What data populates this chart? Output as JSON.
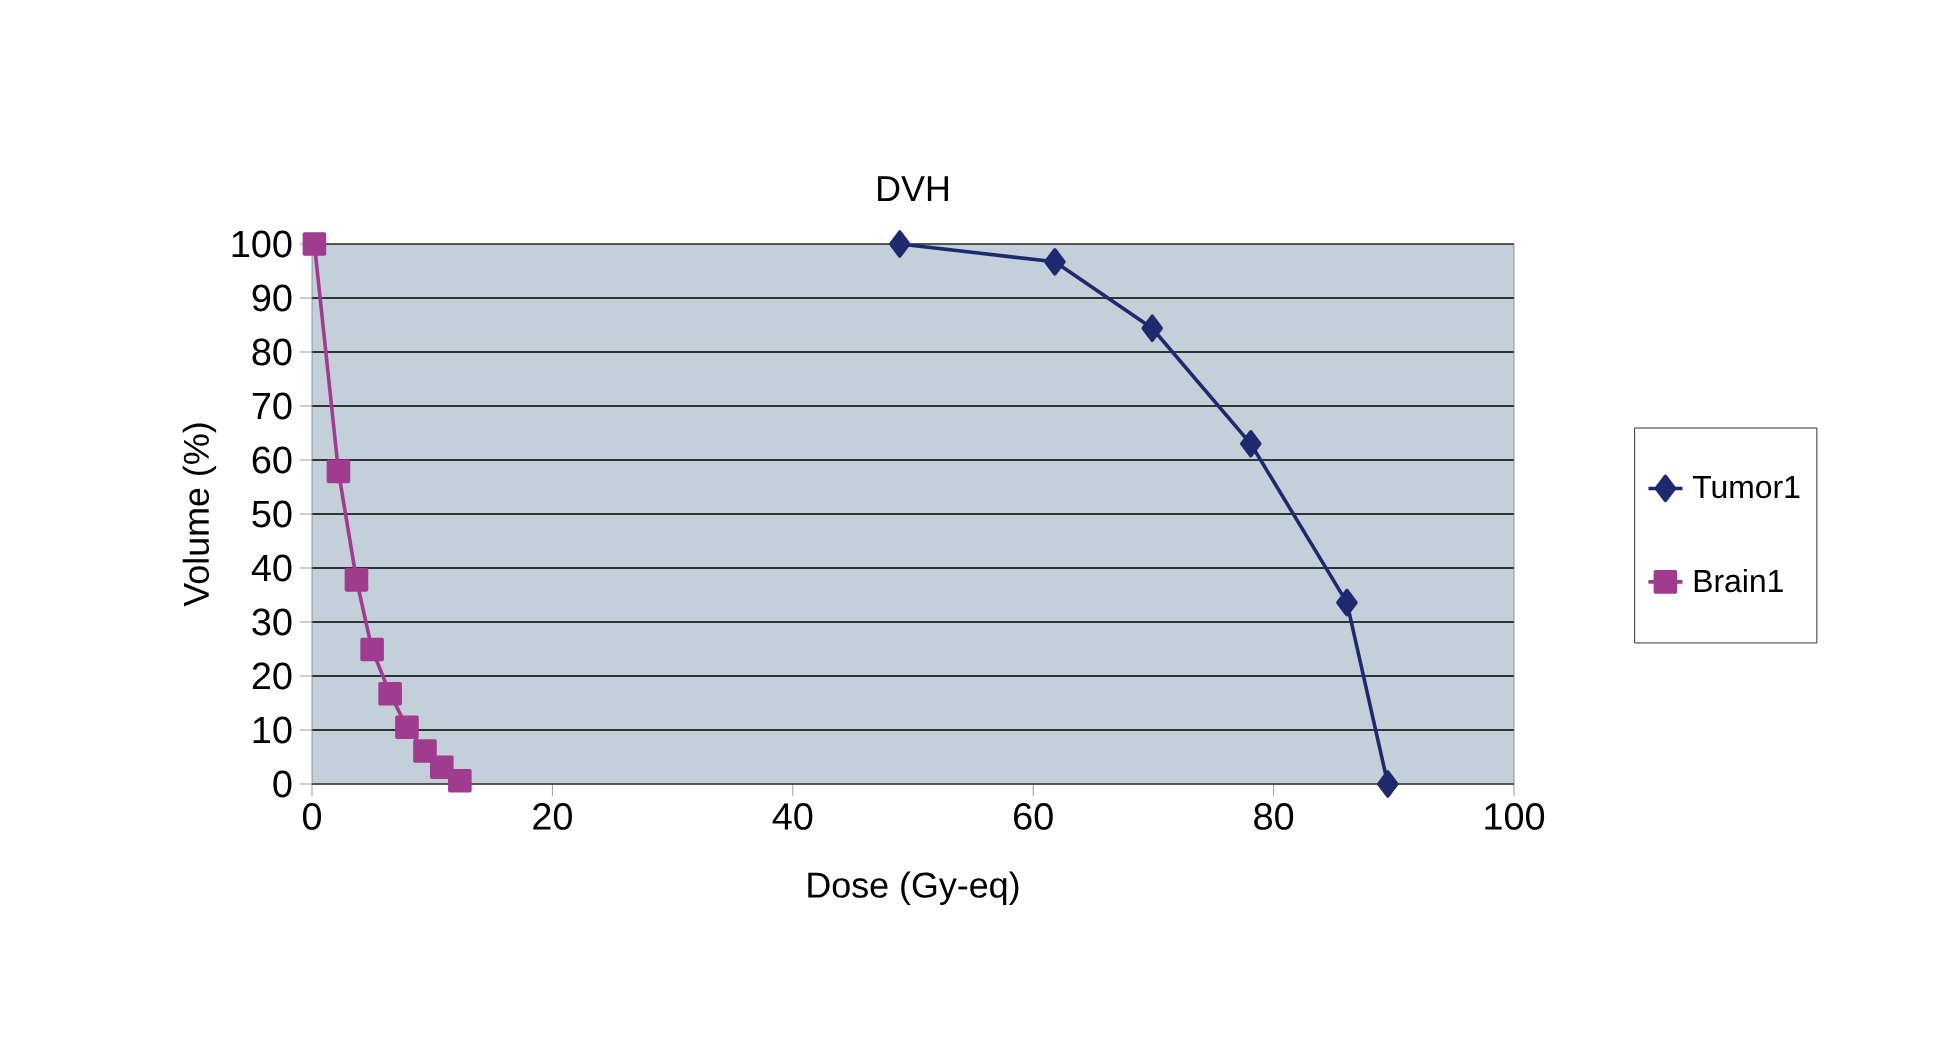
{
  "chart_data": {
    "type": "line",
    "title": "DVH",
    "xlabel": "Dose (Gy-eq)",
    "ylabel": "Volume (%)",
    "xlim": [
      0,
      100
    ],
    "xticks": [
      0,
      20,
      40,
      60,
      80,
      100
    ],
    "ylim": [
      0,
      100
    ],
    "yticks": [
      0,
      10,
      20,
      30,
      40,
      50,
      60,
      70,
      80,
      90,
      100
    ],
    "grid": "y",
    "legend": "right",
    "series": [
      {
        "name": "Tumor1",
        "color": "#1f2a6e",
        "marker": "diamond",
        "x": [
          48.9,
          61.8,
          69.9,
          78.1,
          86.1,
          89.5
        ],
        "values": [
          100,
          96.7,
          84.4,
          63.0,
          33.6,
          0
        ]
      },
      {
        "name": "Brain1",
        "color": "#a03b8f",
        "marker": "square",
        "x": [
          0.2,
          2.2,
          3.7,
          5.0,
          6.5,
          7.9,
          9.4,
          10.8,
          12.3
        ],
        "values": [
          100,
          57.9,
          37.8,
          24.9,
          16.7,
          10.5,
          6.1,
          3.1,
          0.6
        ]
      }
    ]
  }
}
